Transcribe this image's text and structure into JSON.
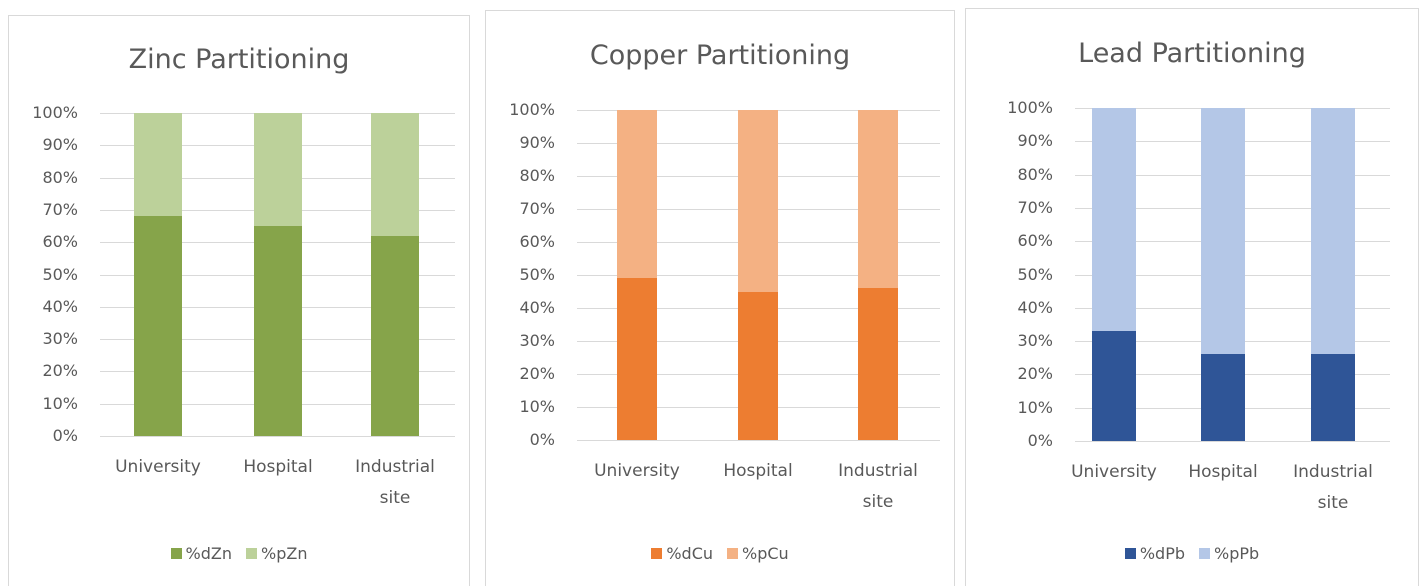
{
  "chart_data": [
    {
      "type": "bar",
      "stacked": true,
      "title": "Zinc Partitioning",
      "categories": [
        "University",
        "Hospital",
        "Industrial site"
      ],
      "series": [
        {
          "name": "%dZn",
          "color": "#86a44a",
          "values": [
            68,
            65,
            62
          ]
        },
        {
          "name": "%pZn",
          "color": "#bcd19a",
          "values": [
            32,
            35,
            38
          ]
        }
      ],
      "ylim": [
        0,
        100
      ],
      "yticks": [
        {
          "value": 0,
          "label": "0%"
        },
        {
          "value": 10,
          "label": "10%"
        },
        {
          "value": 20,
          "label": "20%"
        },
        {
          "value": 30,
          "label": "30%"
        },
        {
          "value": 40,
          "label": "40%"
        },
        {
          "value": 50,
          "label": "50%"
        },
        {
          "value": 60,
          "label": "60%"
        },
        {
          "value": 70,
          "label": "70%"
        },
        {
          "value": 80,
          "label": "80%"
        },
        {
          "value": 90,
          "label": "90%"
        },
        {
          "value": 100,
          "label": "100%"
        }
      ],
      "grid": true,
      "legend": "bottom"
    },
    {
      "type": "bar",
      "stacked": true,
      "title": "Copper Partitioning",
      "categories": [
        "University",
        "Hospital",
        "Industrial site"
      ],
      "series": [
        {
          "name": "%dCu",
          "color": "#ed7d31",
          "values": [
            49,
            45,
            46
          ]
        },
        {
          "name": "%pCu",
          "color": "#f4b183",
          "values": [
            51,
            55,
            54
          ]
        }
      ],
      "ylim": [
        0,
        100
      ],
      "yticks": [
        {
          "value": 0,
          "label": "0%"
        },
        {
          "value": 10,
          "label": "10%"
        },
        {
          "value": 20,
          "label": "20%"
        },
        {
          "value": 30,
          "label": "30%"
        },
        {
          "value": 40,
          "label": "40%"
        },
        {
          "value": 50,
          "label": "50%"
        },
        {
          "value": 60,
          "label": "60%"
        },
        {
          "value": 70,
          "label": "70%"
        },
        {
          "value": 80,
          "label": "80%"
        },
        {
          "value": 90,
          "label": "90%"
        },
        {
          "value": 100,
          "label": "100%"
        }
      ],
      "grid": true,
      "legend": "bottom"
    },
    {
      "type": "bar",
      "stacked": true,
      "title": "Lead Partitioning",
      "categories": [
        "University",
        "Hospital",
        "Industrial site"
      ],
      "series": [
        {
          "name": "%dPb",
          "color": "#2f5597",
          "values": [
            33,
            26,
            26
          ]
        },
        {
          "name": "%pPb",
          "color": "#b4c7e7",
          "values": [
            67,
            74,
            74
          ]
        }
      ],
      "ylim": [
        0,
        100
      ],
      "yticks": [
        {
          "value": 0,
          "label": "0%"
        },
        {
          "value": 10,
          "label": "10%"
        },
        {
          "value": 20,
          "label": "20%"
        },
        {
          "value": 30,
          "label": "30%"
        },
        {
          "value": 40,
          "label": "40%"
        },
        {
          "value": 50,
          "label": "50%"
        },
        {
          "value": 60,
          "label": "60%"
        },
        {
          "value": 70,
          "label": "70%"
        },
        {
          "value": 80,
          "label": "80%"
        },
        {
          "value": 90,
          "label": "90%"
        },
        {
          "value": 100,
          "label": "100%"
        }
      ],
      "grid": true,
      "legend": "bottom"
    }
  ]
}
